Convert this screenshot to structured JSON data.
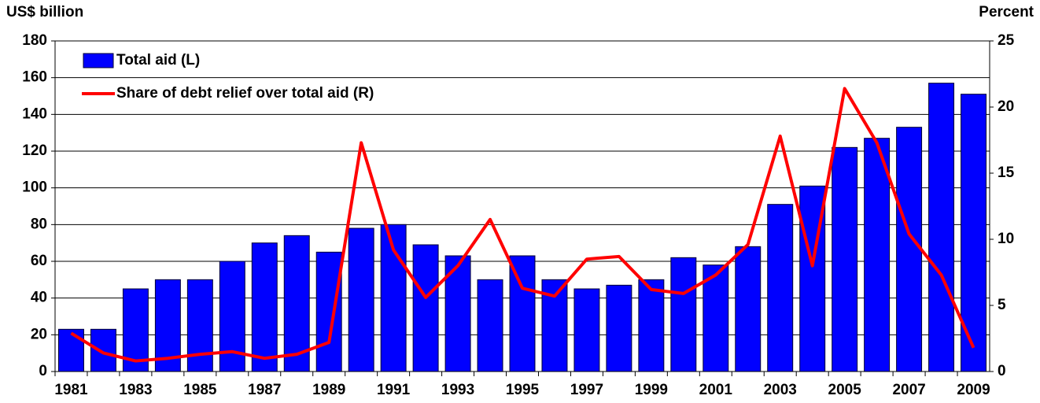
{
  "chart_data": {
    "type": "bar_line",
    "y_label": "US$ billion",
    "y2_label": "Percent",
    "categories": [
      "1981",
      null,
      "1983",
      null,
      "1985",
      null,
      "1987",
      null,
      "1989",
      null,
      "1991",
      null,
      "1993",
      null,
      "1995",
      null,
      "1997",
      null,
      "1999",
      null,
      "2001",
      null,
      "2003",
      null,
      "2005",
      null,
      "2007",
      null,
      "2009"
    ],
    "series": [
      {
        "name": "Total aid (L)",
        "type": "bar",
        "color": "#0000ff",
        "axis": "y",
        "values": [
          23,
          23,
          45,
          50,
          50,
          60,
          70,
          74,
          65,
          78,
          80,
          69,
          63,
          50,
          63,
          50,
          45,
          47,
          50,
          62,
          58,
          68,
          91,
          101,
          122,
          127,
          133,
          157,
          151
        ]
      },
      {
        "name": "Share of debt relief over total aid (R)",
        "type": "line",
        "color": "#ff0000",
        "axis": "y2",
        "values": [
          2.9,
          1.4,
          0.8,
          1.0,
          1.3,
          1.5,
          1.0,
          1.3,
          2.2,
          17.3,
          9.2,
          5.6,
          8.0,
          11.5,
          6.3,
          5.7,
          8.5,
          8.7,
          6.2,
          5.9,
          7.3,
          9.6,
          17.8,
          8.0,
          21.4,
          17.3,
          10.4,
          7.3,
          1.8
        ]
      }
    ],
    "ylim": [
      0,
      180
    ],
    "yticks": [
      0,
      20,
      40,
      60,
      80,
      100,
      120,
      140,
      160,
      180
    ],
    "y2lim": [
      0,
      25
    ],
    "y2ticks": [
      0,
      5,
      10,
      15,
      20,
      25
    ],
    "grid": true
  }
}
